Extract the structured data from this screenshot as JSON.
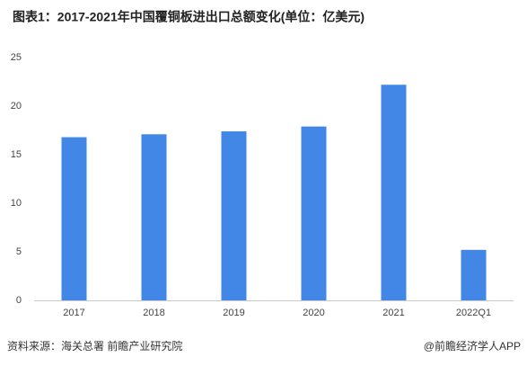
{
  "chart_data": {
    "type": "bar",
    "title": "图表1：2017-2021年中国覆铜板进出口总额变化(单位：亿美元)",
    "categories": [
      "2017",
      "2018",
      "2019",
      "2020",
      "2021",
      "2022Q1"
    ],
    "values": [
      16.8,
      17.1,
      17.4,
      17.9,
      22.2,
      5.2
    ],
    "color": "#4387e6",
    "ylim": [
      0,
      25
    ],
    "yticks": [
      0,
      5,
      10,
      15,
      20,
      25
    ],
    "grid": false,
    "source": "资料来源：海关总署 前瞻产业研究院",
    "credit": "@前瞻经济学人APP"
  }
}
